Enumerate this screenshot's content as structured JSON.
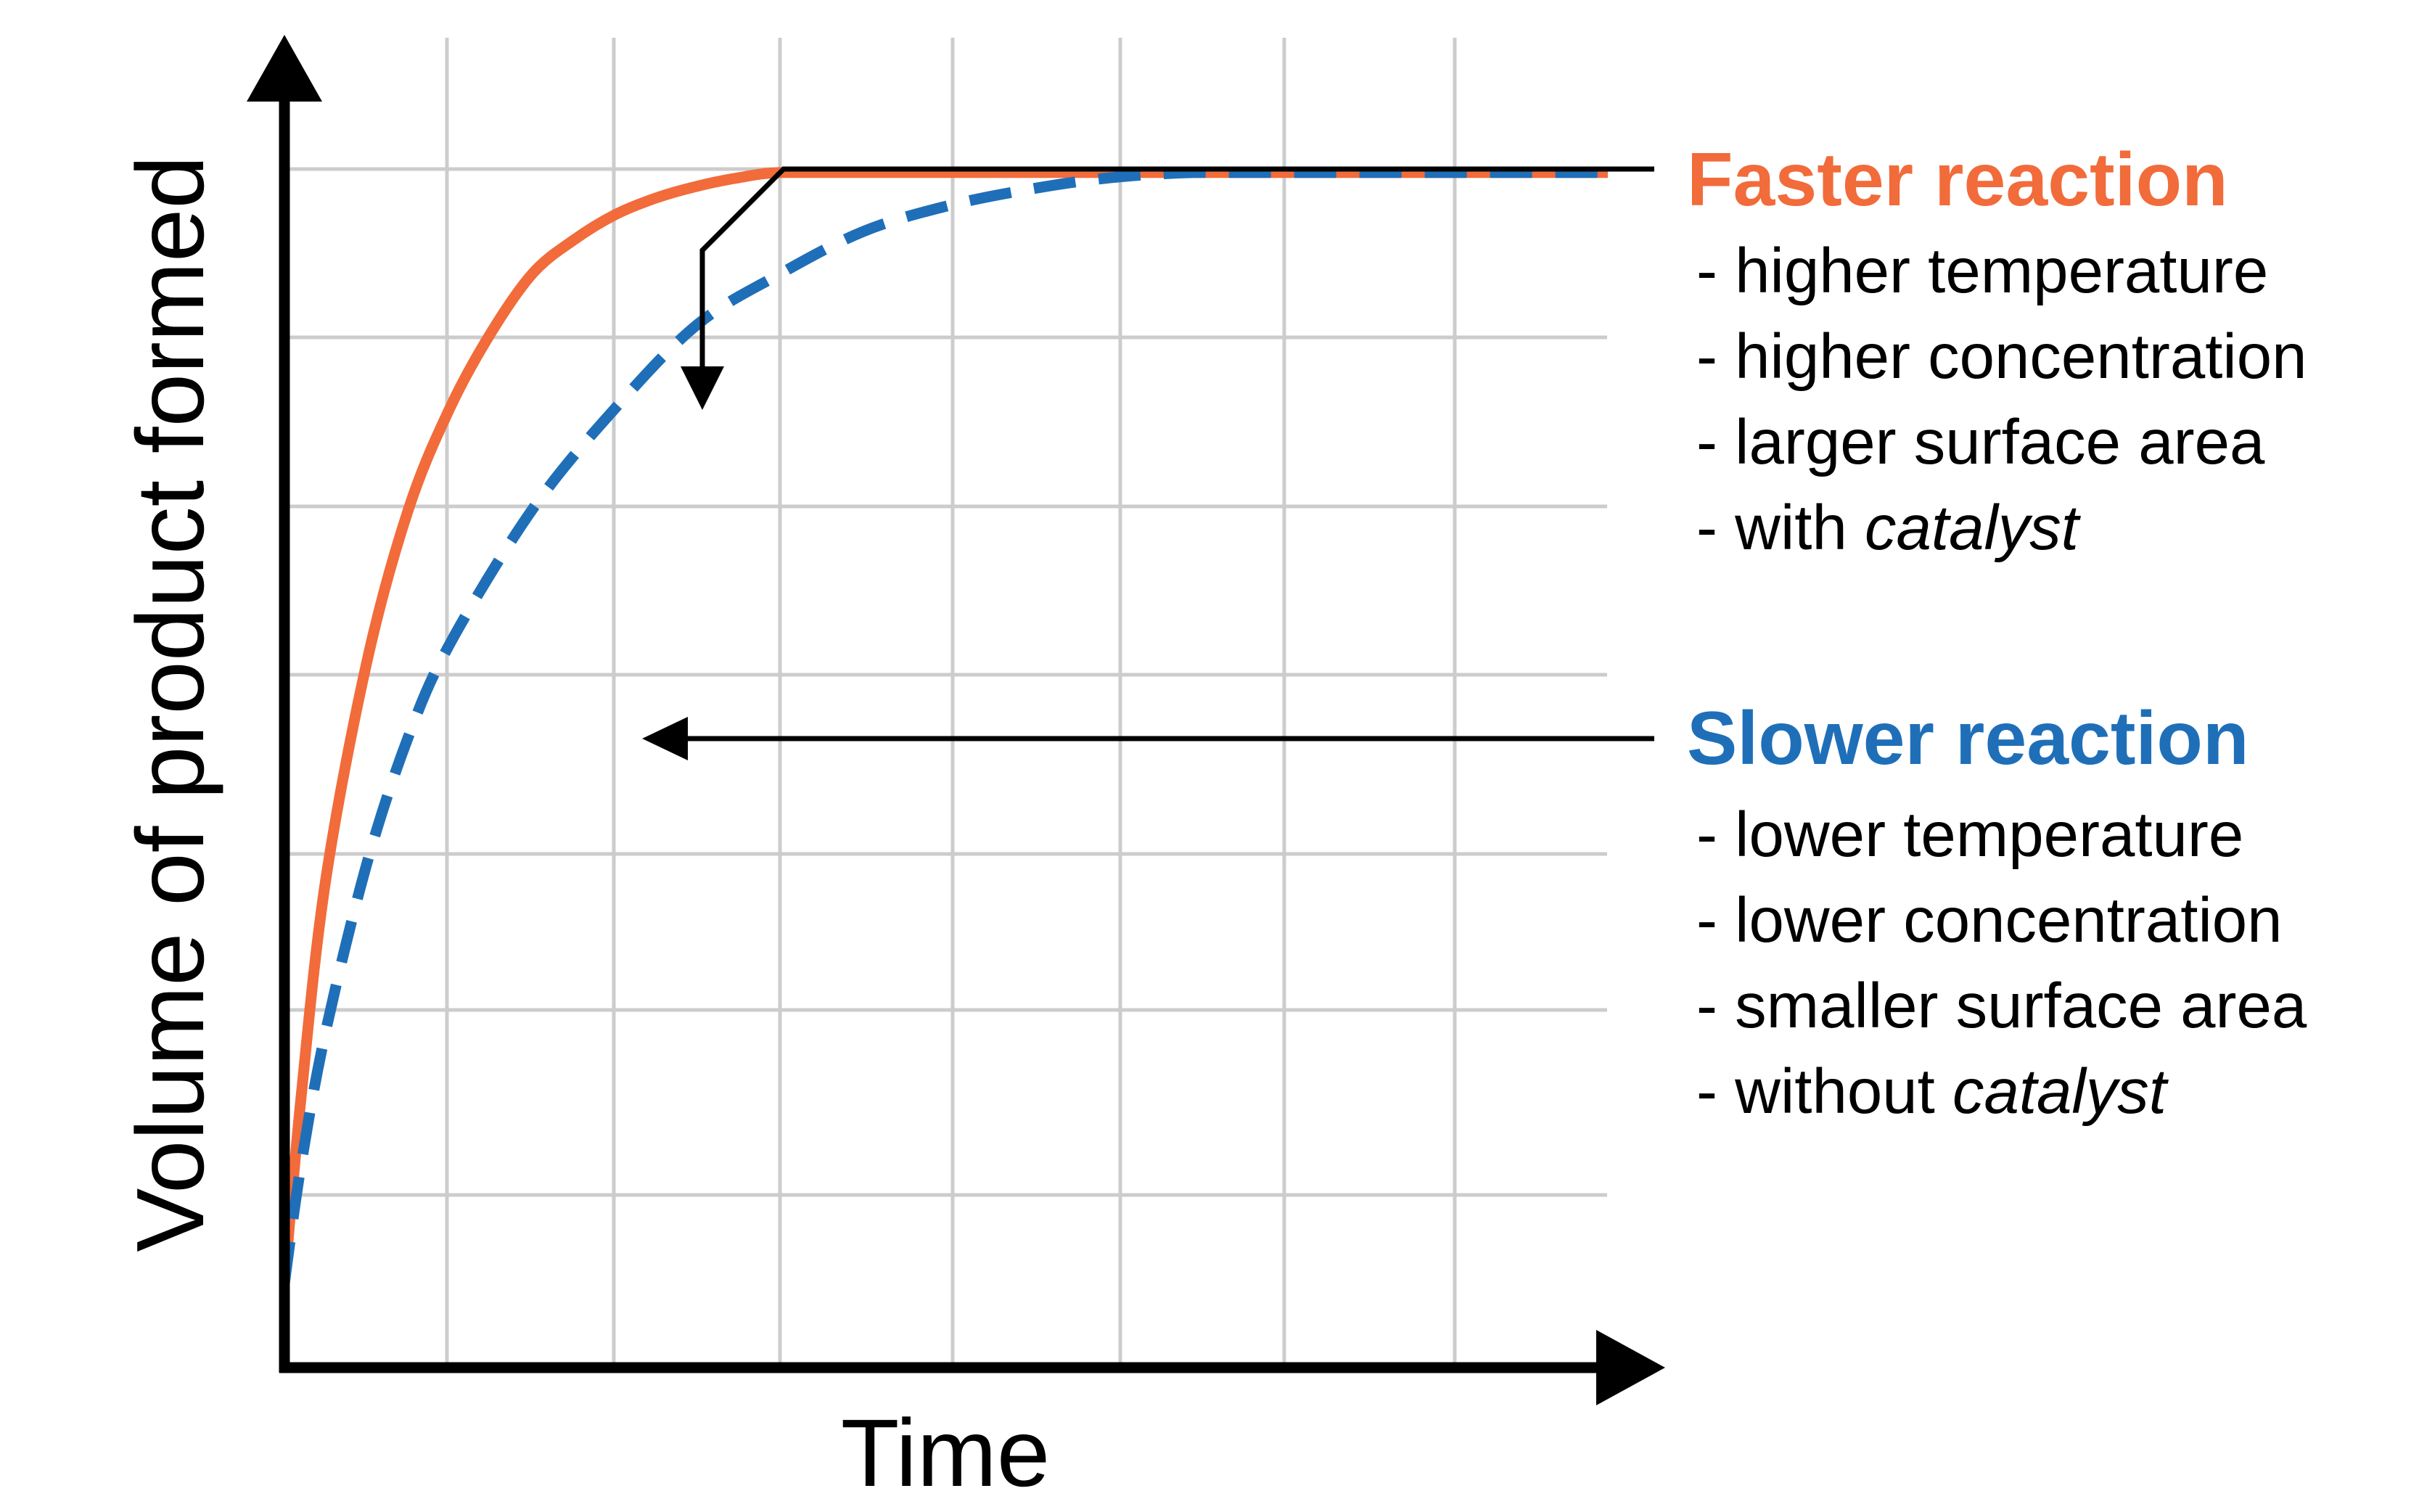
{
  "chart_data": {
    "type": "line",
    "xlabel": "Time",
    "ylabel": "Volume of product formed",
    "xlim": [
      0,
      8
    ],
    "ylim": [
      0,
      8
    ],
    "x_tick_labels": [],
    "y_tick_labels": [],
    "grid": true,
    "series": [
      {
        "name": "Faster reaction",
        "color": "#f26b3a",
        "style": "solid",
        "x": [
          0,
          0.1,
          0.25,
          0.5,
          0.75,
          1.0,
          1.25,
          1.5,
          1.75,
          2.0,
          2.25,
          2.5,
          2.75,
          3.0,
          3.5,
          4.0,
          5.0,
          6.0,
          7.0,
          8.0
        ],
        "y": [
          0.5,
          1.6,
          2.9,
          4.2,
          5.1,
          5.7,
          6.15,
          6.5,
          6.7,
          6.85,
          6.95,
          7.02,
          7.07,
          7.1,
          7.1,
          7.1,
          7.1,
          7.1,
          7.1,
          7.1
        ]
      },
      {
        "name": "Slower reaction",
        "color": "#1f6fb8",
        "style": "dashed",
        "x": [
          0,
          0.1,
          0.25,
          0.5,
          0.75,
          1.0,
          1.5,
          2.0,
          2.5,
          3.0,
          3.5,
          4.0,
          4.5,
          5.0,
          5.5,
          6.0,
          6.5,
          7.0,
          7.5,
          8.0
        ],
        "y": [
          0.5,
          1.2,
          2.0,
          3.0,
          3.75,
          4.3,
          5.1,
          5.7,
          6.2,
          6.5,
          6.75,
          6.9,
          7.0,
          7.07,
          7.1,
          7.1,
          7.1,
          7.1,
          7.1,
          7.1
        ]
      }
    ]
  },
  "annotations": {
    "faster": {
      "heading": "Faster reaction",
      "color": "#f26b3a",
      "items": [
        {
          "prefix": "- higher temperature",
          "emphasis": ""
        },
        {
          "prefix": "- higher concentration",
          "emphasis": ""
        },
        {
          "prefix": "- larger surface area",
          "emphasis": ""
        },
        {
          "prefix": "- with ",
          "emphasis": "catalyst"
        }
      ]
    },
    "slower": {
      "heading": "Slower reaction",
      "color": "#1f6fb8",
      "items": [
        {
          "prefix": "- lower temperature",
          "emphasis": ""
        },
        {
          "prefix": "- lower concentration",
          "emphasis": ""
        },
        {
          "prefix": "- smaller surface area",
          "emphasis": ""
        },
        {
          "prefix": "- without ",
          "emphasis": "catalyst"
        }
      ]
    }
  }
}
